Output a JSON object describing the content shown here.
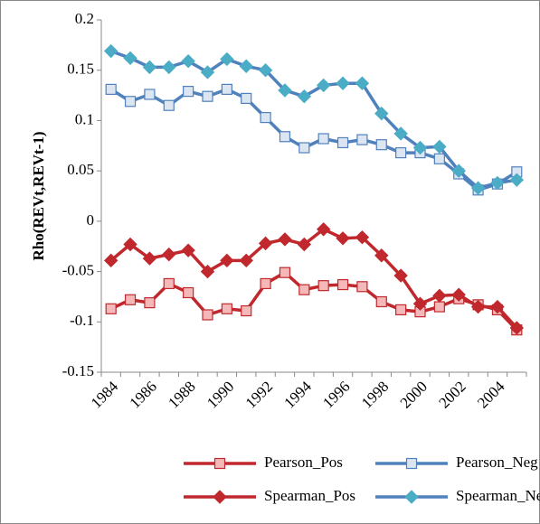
{
  "chart_data": {
    "type": "line",
    "y_label": "Rho(REVt,REVt-1)",
    "categories": [
      "1984",
      null,
      "1986",
      null,
      "1988",
      null,
      "1990",
      null,
      "1992",
      null,
      "1994",
      null,
      "1996",
      null,
      "1998",
      null,
      "2000",
      null,
      "2002",
      null,
      "2004",
      null
    ],
    "ylim": [
      -0.15,
      0.2
    ],
    "yticks": [
      -0.15,
      -0.1,
      -0.05,
      0,
      0.05,
      0.1,
      0.15,
      0.2
    ],
    "grid": false,
    "legend": "bottom",
    "series": [
      {
        "name": "Pearson_Pos",
        "color": "#c0282d",
        "marker": "square",
        "marker_fill": "#f4b8b8",
        "values": [
          -0.087,
          -0.078,
          -0.081,
          -0.062,
          -0.071,
          -0.093,
          -0.087,
          -0.089,
          -0.062,
          -0.051,
          -0.068,
          -0.064,
          -0.063,
          -0.065,
          -0.08,
          -0.088,
          -0.09,
          -0.085,
          -0.077,
          -0.083,
          -0.088,
          -0.108
        ]
      },
      {
        "name": "Pearson_Neg",
        "color": "#4f81bd",
        "marker": "square",
        "marker_fill": "#dce6f2",
        "values": [
          0.131,
          0.119,
          0.126,
          0.115,
          0.129,
          0.124,
          0.131,
          0.122,
          0.103,
          0.084,
          0.073,
          0.082,
          0.078,
          0.081,
          0.076,
          0.068,
          0.068,
          0.062,
          0.047,
          0.031,
          0.037,
          0.049
        ]
      },
      {
        "name": "Spearman_Pos",
        "color": "#c0282d",
        "marker": "diamond",
        "marker_fill": "#c0282d",
        "values": [
          -0.039,
          -0.023,
          -0.037,
          -0.033,
          -0.029,
          -0.05,
          -0.039,
          -0.039,
          -0.022,
          -0.018,
          -0.023,
          -0.008,
          -0.017,
          -0.016,
          -0.034,
          -0.054,
          -0.082,
          -0.074,
          -0.073,
          -0.085,
          -0.085,
          -0.106
        ]
      },
      {
        "name": "Spearman_Neg",
        "color": "#4f81bd",
        "marker": "diamond",
        "marker_fill": "#4bacc6",
        "values": [
          0.169,
          0.162,
          0.153,
          0.153,
          0.159,
          0.148,
          0.161,
          0.154,
          0.15,
          0.13,
          0.124,
          0.135,
          0.137,
          0.137,
          0.107,
          0.087,
          0.073,
          0.074,
          0.05,
          0.033,
          0.038,
          0.041
        ]
      }
    ]
  }
}
